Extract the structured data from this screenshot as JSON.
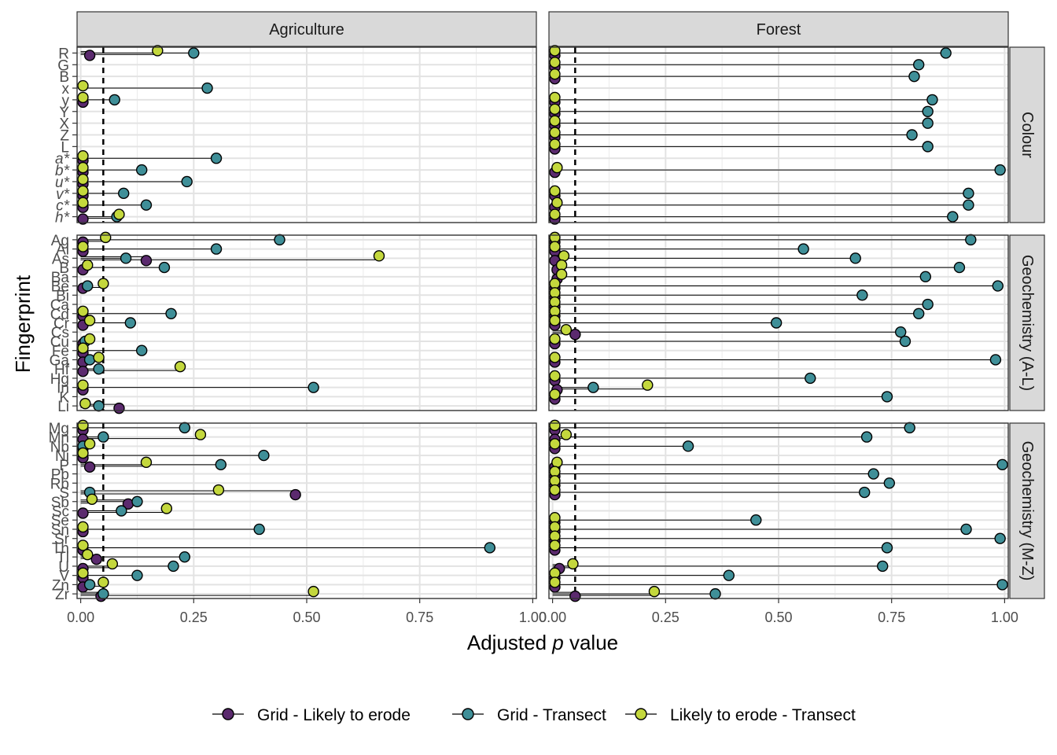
{
  "chart_data": {
    "type": "scatter",
    "subtype": "faceted dot-and-whisker (lollipop)",
    "xlabel_parts": [
      "Adjusted ",
      "p",
      " value"
    ],
    "ylabel": "Fingerprint",
    "xlim": [
      0,
      1
    ],
    "x_ticks": [
      "0.00",
      "0.25",
      "0.50",
      "0.75",
      "1.00"
    ],
    "x_tick_values": [
      0,
      0.25,
      0.5,
      0.75,
      1
    ],
    "reference_line": 0.05,
    "grid": true,
    "legend_position": "bottom",
    "columns": [
      "Agriculture",
      "Forest"
    ],
    "rows": [
      {
        "name": "Colour",
        "fingerprints": [
          "R",
          "G",
          "B",
          "x",
          "y",
          "Y",
          "X",
          "Z",
          "L",
          "a*",
          "b*",
          "u*",
          "v*",
          "c*",
          "h*"
        ]
      },
      {
        "name": "Geochemistry (A-L)",
        "fingerprints": [
          "Ag",
          "Al",
          "As",
          "B",
          "Ba",
          "Be",
          "Bi",
          "Ca",
          "Cd",
          "Cr",
          "Cs",
          "Cu",
          "Fe",
          "Ga",
          "Hf",
          "Hg",
          "In",
          "K",
          "Li"
        ]
      },
      {
        "name": "Geochemistry (M-Z)",
        "fingerprints": [
          "Mg",
          "Mn",
          "Nb",
          "Ni",
          "P",
          "Pb",
          "Rb",
          "S",
          "Sb",
          "Sc",
          "Se",
          "Sn",
          "Sr",
          "Th",
          "Tl",
          "U",
          "V",
          "Zn",
          "Zr"
        ]
      }
    ],
    "series": [
      {
        "name": "Grid - Likely to erode",
        "color": "#5b2a6e"
      },
      {
        "name": "Grid - Transect",
        "color": "#3f8f98"
      },
      {
        "name": "Likely to erode - Transect",
        "color": "#c4d83d"
      }
    ],
    "values": {
      "Colour": {
        "Agriculture": {
          "R": [
            0.02,
            0.25,
            0.17
          ],
          "G": [
            0,
            0,
            0
          ],
          "B": [
            0,
            0,
            0
          ],
          "x": [
            0,
            0.28,
            0.005
          ],
          "y": [
            0.005,
            0.075,
            0.005
          ],
          "Y": [
            0,
            0,
            0
          ],
          "X": [
            0,
            0,
            0
          ],
          "Z": [
            0,
            0,
            0
          ],
          "L": [
            0,
            0,
            0
          ],
          "a*": [
            0.005,
            0.3,
            0.005
          ],
          "b*": [
            0.005,
            0.135,
            0.005
          ],
          "u*": [
            0.005,
            0.235,
            0.005
          ],
          "v*": [
            0.005,
            0.095,
            0.005
          ],
          "c*": [
            0.005,
            0.145,
            0.005
          ],
          "h*": [
            0.005,
            0.08,
            0.085
          ]
        },
        "Forest": {
          "R": [
            0.005,
            0.87,
            0.005
          ],
          "G": [
            0.005,
            0.81,
            0.005
          ],
          "B": [
            0.005,
            0.8,
            0.005
          ],
          "x": [
            0,
            0,
            0
          ],
          "y": [
            0.005,
            0.84,
            0.005
          ],
          "Y": [
            0.005,
            0.83,
            0.005
          ],
          "X": [
            0.005,
            0.83,
            0.005
          ],
          "Z": [
            0.005,
            0.795,
            0.005
          ],
          "L": [
            0.005,
            0.83,
            0.005
          ],
          "a*": [
            0,
            0,
            0
          ],
          "b*": [
            0.005,
            0.99,
            0.01
          ],
          "u*": [
            0,
            0,
            0
          ],
          "v*": [
            0.005,
            0.92,
            0.005
          ],
          "c*": [
            0.005,
            0.92,
            0.01
          ],
          "h*": [
            0.005,
            0.885,
            0.005
          ]
        }
      },
      "Geochemistry (A-L)": {
        "Agriculture": {
          "Ag": [
            0.005,
            0.44,
            0.055
          ],
          "Al": [
            0.005,
            0.3,
            0.005
          ],
          "As": [
            0.145,
            0.1,
            0.66
          ],
          "B": [
            0.005,
            0.185,
            0.015
          ],
          "Ba": [
            0,
            0,
            0
          ],
          "Be": [
            0.005,
            0.015,
            0.05
          ],
          "Bi": [
            0,
            0,
            0
          ],
          "Ca": [
            0,
            0,
            0
          ],
          "Cd": [
            0.005,
            0.2,
            0.005
          ],
          "Cr": [
            0.005,
            0.11,
            0.02
          ],
          "Cs": [
            0,
            0,
            0
          ],
          "Cu": [
            0.005,
            0.01,
            0.02
          ],
          "Fe": [
            0.005,
            0.135,
            0.005
          ],
          "Ga": [
            0.005,
            0.02,
            0.04
          ],
          "Hf": [
            0.005,
            0.04,
            0.22
          ],
          "Hg": [
            0,
            0,
            0
          ],
          "In": [
            0.005,
            0.515,
            0.005
          ],
          "K": [
            0,
            0,
            0
          ],
          "Li": [
            0.085,
            0.04,
            0.01
          ]
        },
        "Forest": {
          "Ag": [
            0.005,
            0.925,
            0.005
          ],
          "Al": [
            0.005,
            0.555,
            0.005
          ],
          "As": [
            0.005,
            0.67,
            0.025
          ],
          "B": [
            0.01,
            0.9,
            0.02
          ],
          "Ba": [
            0.01,
            0.825,
            0.02
          ],
          "Be": [
            0.005,
            0.985,
            0.005
          ],
          "Bi": [
            0.005,
            0.685,
            0.005
          ],
          "Ca": [
            0.005,
            0.83,
            0.005
          ],
          "Cd": [
            0.005,
            0.81,
            0.005
          ],
          "Cr": [
            0.005,
            0.495,
            0.005
          ],
          "Cs": [
            0.05,
            0.77,
            0.03
          ],
          "Cu": [
            0.005,
            0.78,
            0.005
          ],
          "Fe": [
            0,
            0,
            0
          ],
          "Ga": [
            0.005,
            0.98,
            0.005
          ],
          "Hf": [
            0,
            0,
            0
          ],
          "Hg": [
            0.005,
            0.57,
            0.005
          ],
          "In": [
            0.01,
            0.09,
            0.21
          ],
          "K": [
            0.005,
            0.74,
            0.005
          ],
          "Li": [
            0,
            0,
            0
          ]
        }
      },
      "Geochemistry (M-Z)": {
        "Agriculture": {
          "Mg": [
            0.005,
            0.23,
            0.005
          ],
          "Mn": [
            0.005,
            0.05,
            0.265
          ],
          "Nb": [
            0.005,
            0.005,
            0.02
          ],
          "Ni": [
            0.005,
            0.405,
            0.005
          ],
          "P": [
            0.02,
            0.31,
            0.145
          ],
          "Pb": [
            0,
            0,
            0
          ],
          "Rb": [
            0,
            0,
            0
          ],
          "S": [
            0.475,
            0.02,
            0.305
          ],
          "Sb": [
            0.105,
            0.125,
            0.025
          ],
          "Sc": [
            0.005,
            0.09,
            0.19
          ],
          "Se": [
            0,
            0,
            0
          ],
          "Sn": [
            0.005,
            0.395,
            0.005
          ],
          "Sr": [
            0,
            0,
            0
          ],
          "Th": [
            0.005,
            0.905,
            0.005
          ],
          "Tl": [
            0.035,
            0.23,
            0.015
          ],
          "U": [
            0.005,
            0.205,
            0.07
          ],
          "V": [
            0.005,
            0.125,
            0.005
          ],
          "Zn": [
            0.005,
            0.02,
            0.05
          ],
          "Zr": [
            0.045,
            0.05,
            0.515
          ]
        },
        "Forest": {
          "Mg": [
            0.005,
            0.79,
            0.005
          ],
          "Mn": [
            0.005,
            0.695,
            0.03
          ],
          "Nb": [
            0.005,
            0.3,
            0.005
          ],
          "Ni": [
            0,
            0,
            0
          ],
          "P": [
            0.005,
            0.995,
            0.01
          ],
          "Pb": [
            0.005,
            0.71,
            0.005
          ],
          "Rb": [
            0.005,
            0.745,
            0.005
          ],
          "S": [
            0.005,
            0.69,
            0.005
          ],
          "Sb": [
            0,
            0,
            0
          ],
          "Sc": [
            0,
            0,
            0
          ],
          "Se": [
            0.005,
            0.45,
            0.005
          ],
          "Sn": [
            0.005,
            0.915,
            0.005
          ],
          "Sr": [
            0.005,
            0.99,
            0.005
          ],
          "Th": [
            0.005,
            0.74,
            0.005
          ],
          "Tl": [
            0,
            0,
            0
          ],
          "U": [
            0.015,
            0.73,
            0.045
          ],
          "V": [
            0.005,
            0.39,
            0.005
          ],
          "Zn": [
            0.005,
            0.995,
            0.005
          ],
          "Zr": [
            0.05,
            0.36,
            0.225
          ]
        }
      }
    }
  }
}
